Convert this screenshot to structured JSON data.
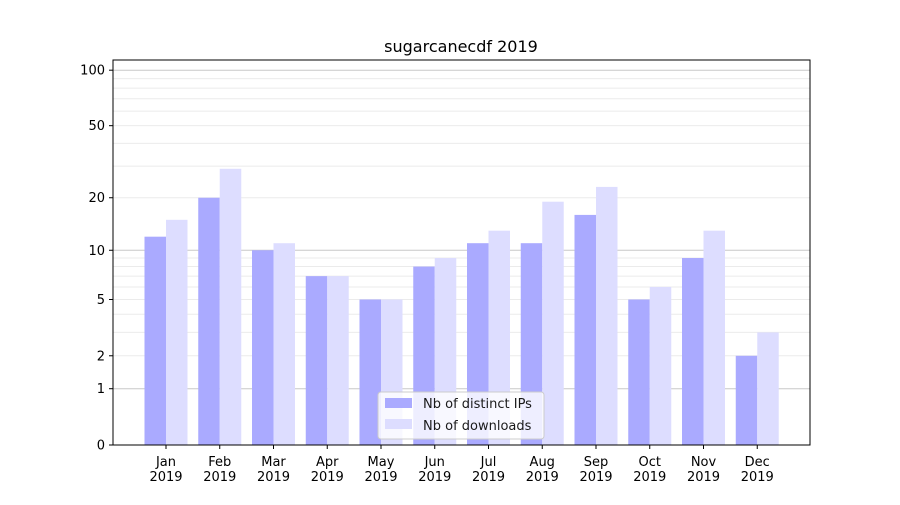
{
  "chart_data": {
    "type": "bar",
    "title": "sugarcanecdf 2019",
    "xlabel": "",
    "ylabel": "",
    "yscale": "log(1+x)",
    "ylim": [
      0,
      113.5
    ],
    "yticks": [
      0,
      1,
      2,
      5,
      10,
      20,
      50,
      100
    ],
    "categories": [
      "Jan\n2019",
      "Feb\n2019",
      "Mar\n2019",
      "Apr\n2019",
      "May\n2019",
      "Jun\n2019",
      "Jul\n2019",
      "Aug\n2019",
      "Sep\n2019",
      "Oct\n2019",
      "Nov\n2019",
      "Dec\n2019"
    ],
    "series": [
      {
        "name": "Nb of distinct IPs",
        "color": "#aaaaff",
        "values": [
          12,
          20,
          10,
          7,
          5,
          8,
          11,
          11,
          16,
          5,
          9,
          2
        ]
      },
      {
        "name": "Nb of downloads",
        "color": "#ddddff",
        "values": [
          15,
          29,
          11,
          7,
          5,
          9,
          13,
          19,
          23,
          6,
          13,
          3
        ]
      }
    ],
    "legend_position": "bottom-center",
    "grid": true
  }
}
